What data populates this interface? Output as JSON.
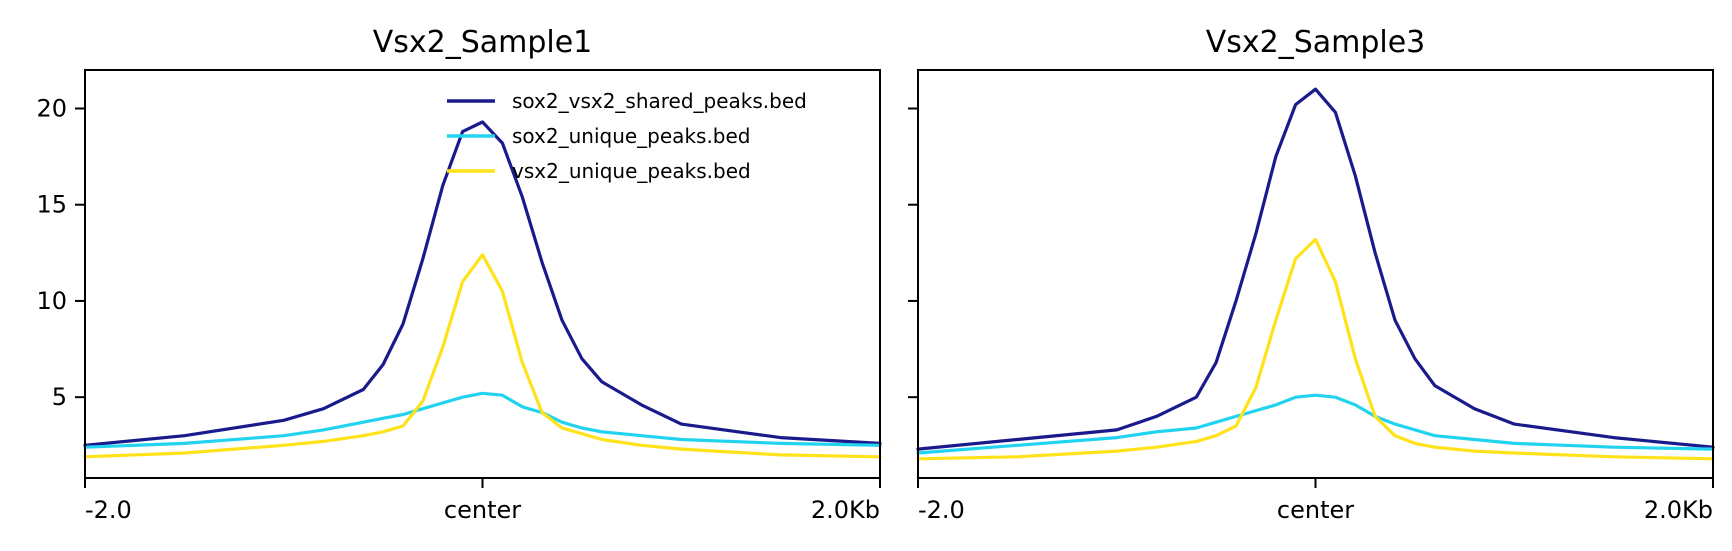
{
  "chart_data": [
    {
      "type": "line",
      "title": "Vsx2_Sample1",
      "x_tick_labels": [
        "-2.0",
        "center",
        "2.0Kb"
      ],
      "xlim": [
        -2.0,
        2.0
      ],
      "ylim": [
        0.8,
        22.0
      ],
      "y_ticks": [
        5,
        10,
        15,
        20
      ],
      "legend_position": "top-right",
      "x": [
        -2.0,
        -1.5,
        -1.0,
        -0.8,
        -0.6,
        -0.5,
        -0.4,
        -0.3,
        -0.2,
        -0.1,
        0.0,
        0.1,
        0.2,
        0.3,
        0.4,
        0.5,
        0.6,
        0.8,
        1.0,
        1.5,
        2.0
      ],
      "series": [
        {
          "name": "sox2_vsx2_shared_peaks.bed",
          "color": "#1a1a8c",
          "values": [
            2.5,
            3.0,
            3.8,
            4.4,
            5.4,
            6.7,
            8.8,
            12.2,
            16.0,
            18.8,
            19.3,
            18.2,
            15.4,
            12.0,
            9.0,
            7.0,
            5.8,
            4.6,
            3.6,
            2.9,
            2.6
          ]
        },
        {
          "name": "sox2_unique_peaks.bed",
          "color": "#22d3f0",
          "values": [
            2.4,
            2.6,
            3.0,
            3.3,
            3.7,
            3.9,
            4.1,
            4.4,
            4.7,
            5.0,
            5.2,
            5.1,
            4.5,
            4.2,
            3.7,
            3.4,
            3.2,
            3.0,
            2.8,
            2.6,
            2.5
          ]
        },
        {
          "name": "vsx2_unique_peaks.bed",
          "color": "#ffe21a",
          "values": [
            1.9,
            2.1,
            2.5,
            2.7,
            3.0,
            3.2,
            3.5,
            4.8,
            7.6,
            11.0,
            12.4,
            10.5,
            6.8,
            4.2,
            3.4,
            3.1,
            2.8,
            2.5,
            2.3,
            2.0,
            1.9
          ]
        }
      ]
    },
    {
      "type": "line",
      "title": "Vsx2_Sample3",
      "x_tick_labels": [
        "-2.0",
        "center",
        "2.0Kb"
      ],
      "xlim": [
        -2.0,
        2.0
      ],
      "ylim": [
        0.8,
        22.0
      ],
      "y_ticks": [
        5,
        10,
        15,
        20
      ],
      "x": [
        -2.0,
        -1.5,
        -1.0,
        -0.8,
        -0.6,
        -0.5,
        -0.4,
        -0.3,
        -0.2,
        -0.1,
        0.0,
        0.1,
        0.2,
        0.3,
        0.4,
        0.5,
        0.6,
        0.8,
        1.0,
        1.5,
        2.0
      ],
      "series": [
        {
          "name": "sox2_vsx2_shared_peaks.bed",
          "color": "#1a1a8c",
          "values": [
            2.3,
            2.8,
            3.3,
            4.0,
            5.0,
            6.8,
            10.0,
            13.5,
            17.5,
            20.2,
            21.0,
            19.8,
            16.5,
            12.5,
            9.0,
            7.0,
            5.6,
            4.4,
            3.6,
            2.9,
            2.4
          ]
        },
        {
          "name": "sox2_unique_peaks.bed",
          "color": "#22d3f0",
          "values": [
            2.1,
            2.5,
            2.9,
            3.2,
            3.4,
            3.7,
            4.0,
            4.3,
            4.6,
            5.0,
            5.1,
            5.0,
            4.6,
            4.0,
            3.6,
            3.3,
            3.0,
            2.8,
            2.6,
            2.4,
            2.3
          ]
        },
        {
          "name": "vsx2_unique_peaks.bed",
          "color": "#ffe21a",
          "values": [
            1.8,
            1.9,
            2.2,
            2.4,
            2.7,
            3.0,
            3.5,
            5.5,
            9.0,
            12.2,
            13.2,
            11.0,
            7.0,
            4.0,
            3.0,
            2.6,
            2.4,
            2.2,
            2.1,
            1.9,
            1.8
          ]
        }
      ]
    }
  ]
}
